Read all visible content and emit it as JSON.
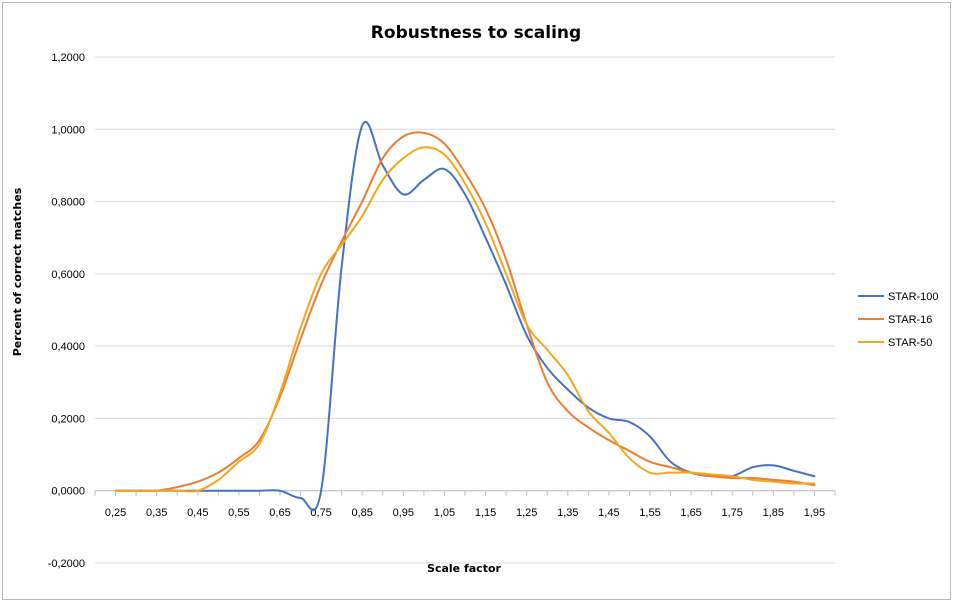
{
  "chart_data": {
    "type": "line",
    "title": "Robustness to scaling",
    "xlabel": "Scale factor",
    "ylabel": "Percent of correct matches",
    "x": [
      0.25,
      0.3,
      0.35,
      0.4,
      0.45,
      0.5,
      0.55,
      0.6,
      0.65,
      0.7,
      0.75,
      0.8,
      0.85,
      0.9,
      0.95,
      1.0,
      1.05,
      1.1,
      1.15,
      1.2,
      1.25,
      1.3,
      1.35,
      1.4,
      1.45,
      1.5,
      1.55,
      1.6,
      1.65,
      1.7,
      1.75,
      1.8,
      1.85,
      1.9,
      1.95
    ],
    "x_ticks": [
      "0,25",
      "0,35",
      "0,45",
      "0,55",
      "0,65",
      "0,75",
      "0,85",
      "0,95",
      "1,05",
      "1,15",
      "1,25",
      "1,35",
      "1,45",
      "1,55",
      "1,65",
      "1,75",
      "1,85",
      "1,95"
    ],
    "x_tick_values": [
      0.25,
      0.35,
      0.45,
      0.55,
      0.65,
      0.75,
      0.85,
      0.95,
      1.05,
      1.15,
      1.25,
      1.35,
      1.45,
      1.55,
      1.65,
      1.75,
      1.85,
      1.95
    ],
    "y_ticks": [
      "-0,2000",
      "0,0000",
      "0,2000",
      "0,4000",
      "0,6000",
      "0,8000",
      "1,0000",
      "1,2000"
    ],
    "y_tick_values": [
      -0.2,
      0.0,
      0.2,
      0.4,
      0.6,
      0.8,
      1.0,
      1.2
    ],
    "xlim": [
      0.25,
      1.95
    ],
    "ylim": [
      -0.2,
      1.2
    ],
    "grid": "horizontal",
    "legend_position": "right",
    "series": [
      {
        "name": "STAR-100",
        "color": "#4472C4",
        "values": [
          0.0,
          0.0,
          0.0,
          0.0,
          0.0,
          0.0,
          0.0,
          0.0,
          0.0,
          -0.02,
          0.0,
          0.62,
          1.01,
          0.9,
          0.82,
          0.86,
          0.89,
          0.82,
          0.7,
          0.57,
          0.43,
          0.34,
          0.28,
          0.23,
          0.2,
          0.19,
          0.15,
          0.08,
          0.05,
          0.04,
          0.04,
          0.065,
          0.07,
          0.055,
          0.04
        ]
      },
      {
        "name": "STAR-16",
        "color": "#ED7D31",
        "values": [
          0.0,
          0.0,
          0.0,
          0.01,
          0.025,
          0.05,
          0.09,
          0.14,
          0.26,
          0.42,
          0.57,
          0.69,
          0.8,
          0.92,
          0.98,
          0.99,
          0.96,
          0.88,
          0.78,
          0.64,
          0.46,
          0.3,
          0.22,
          0.175,
          0.14,
          0.11,
          0.08,
          0.065,
          0.05,
          0.04,
          0.035,
          0.035,
          0.03,
          0.025,
          0.015
        ]
      },
      {
        "name": "STAR-50",
        "color": "#F0A81C",
        "values": [
          0.0,
          0.0,
          0.0,
          0.0,
          0.0,
          0.03,
          0.08,
          0.13,
          0.27,
          0.45,
          0.6,
          0.68,
          0.76,
          0.86,
          0.92,
          0.95,
          0.93,
          0.85,
          0.74,
          0.6,
          0.46,
          0.39,
          0.32,
          0.22,
          0.16,
          0.09,
          0.05,
          0.05,
          0.05,
          0.045,
          0.04,
          0.03,
          0.025,
          0.02,
          0.02
        ]
      }
    ]
  }
}
